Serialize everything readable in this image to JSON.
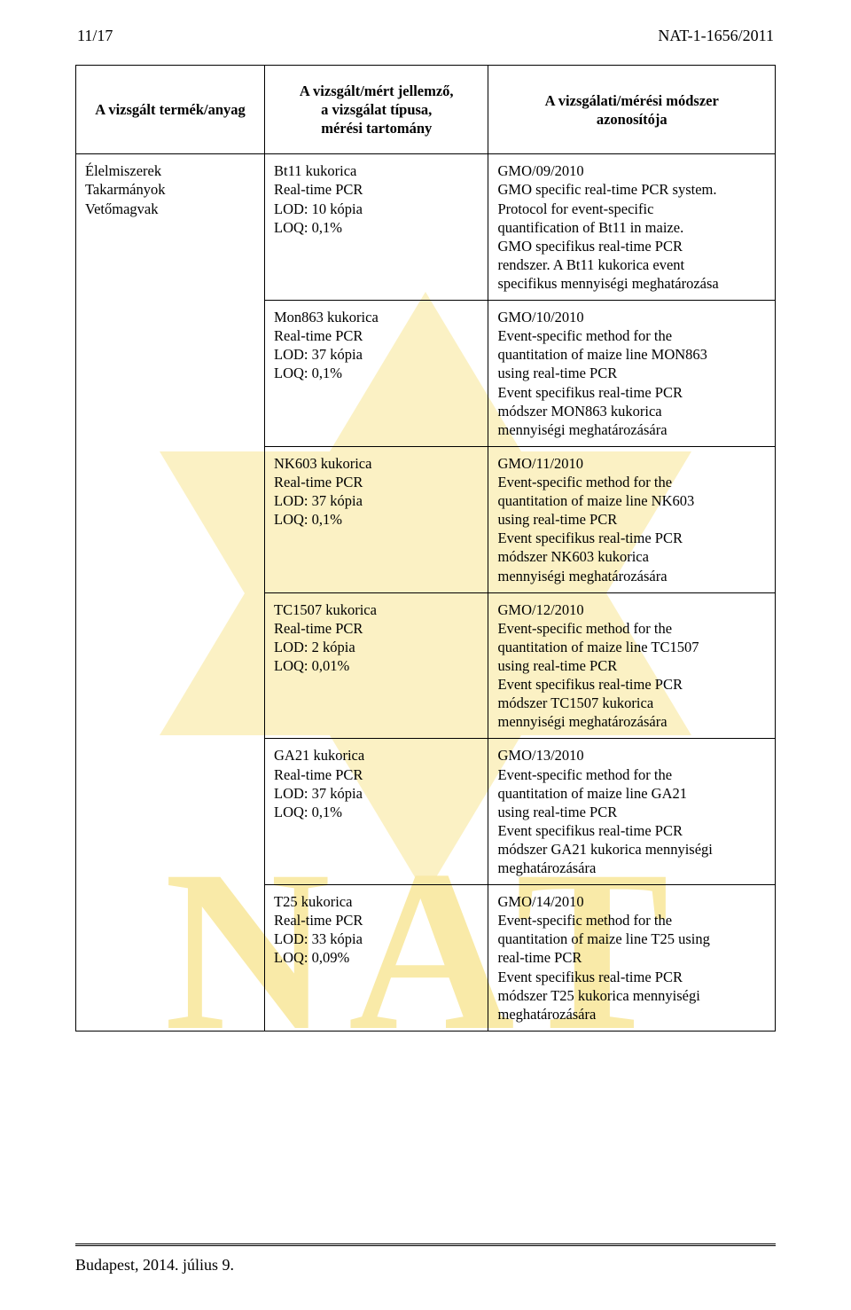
{
  "header": {
    "page_number": "11/17",
    "doc_code": "NAT-1-1656/2011"
  },
  "table": {
    "columns": [
      "A vizsgált termék/anyag",
      "A vizsgált/mért jellemző,\na vizsgálat típusa,\nmérési tartomány",
      "A vizsgálati/mérési módszer\nazonosítója"
    ],
    "left_cell": "Élelmiszerek\nTakarmányok\nVetőmagvak",
    "rows": [
      {
        "mid": "Bt11 kukorica\nReal-time PCR\nLOD: 10 kópia\nLOQ:  0,1%",
        "right": "GMO/09/2010\nGMO specific real-time PCR system.\nProtocol for event-specific\nquantification of Bt11 in maize.\nGMO specifikus real-time PCR\nrendszer. A Bt11 kukorica event\nspecifikus mennyiségi meghatározása"
      },
      {
        "mid": "Mon863 kukorica\nReal-time PCR\nLOD: 37 kópia\nLOQ: 0,1%",
        "right": "GMO/10/2010\nEvent-specific  method for the\nquantitation of maize line MON863\nusing real-time PCR\nEvent specifikus real-time PCR\nmódszer MON863 kukorica\nmennyiségi meghatározására"
      },
      {
        "mid": "NK603 kukorica\nReal-time PCR\nLOD: 37 kópia\nLOQ: 0,1%",
        "right": "GMO/11/2010\nEvent-specific  method for the\nquantitation of maize line NK603\nusing real-time PCR\nEvent specifikus real-time PCR\nmódszer NK603 kukorica\nmennyiségi meghatározására"
      },
      {
        "mid": "TC1507 kukorica\nReal-time PCR\nLOD:  2 kópia\nLOQ:  0,01%",
        "right": "GMO/12/2010\nEvent-specific  method for the\nquantitation of maize line TC1507\nusing real-time PCR\nEvent specifikus real-time PCR\nmódszer TC1507 kukorica\nmennyiségi meghatározására"
      },
      {
        "mid": "GA21 kukorica\nReal-time PCR\nLOD: 37 kópia\nLOQ: 0,1%",
        "right": "GMO/13/2010\nEvent-specific  method for the\nquantitation of maize line GA21\nusing real-time PCR\nEvent specifikus real-time PCR\nmódszer GA21 kukorica mennyiségi\nmeghatározására"
      },
      {
        "mid": "T25 kukorica\nReal-time PCR\nLOD: 33 kópia\nLOQ: 0,09%",
        "right": "GMO/14/2010\nEvent-specific  method for the\nquantitation of maize line T25 using\nreal-time PCR\nEvent specifikus real-time PCR\nmódszer T25 kukorica mennyiségi\nmeghatározására"
      }
    ]
  },
  "footer": {
    "text": "Budapest, 2014. július 9."
  },
  "watermark": {
    "fill": "#fbf1c4",
    "text_fill": "#f9eaa8"
  }
}
